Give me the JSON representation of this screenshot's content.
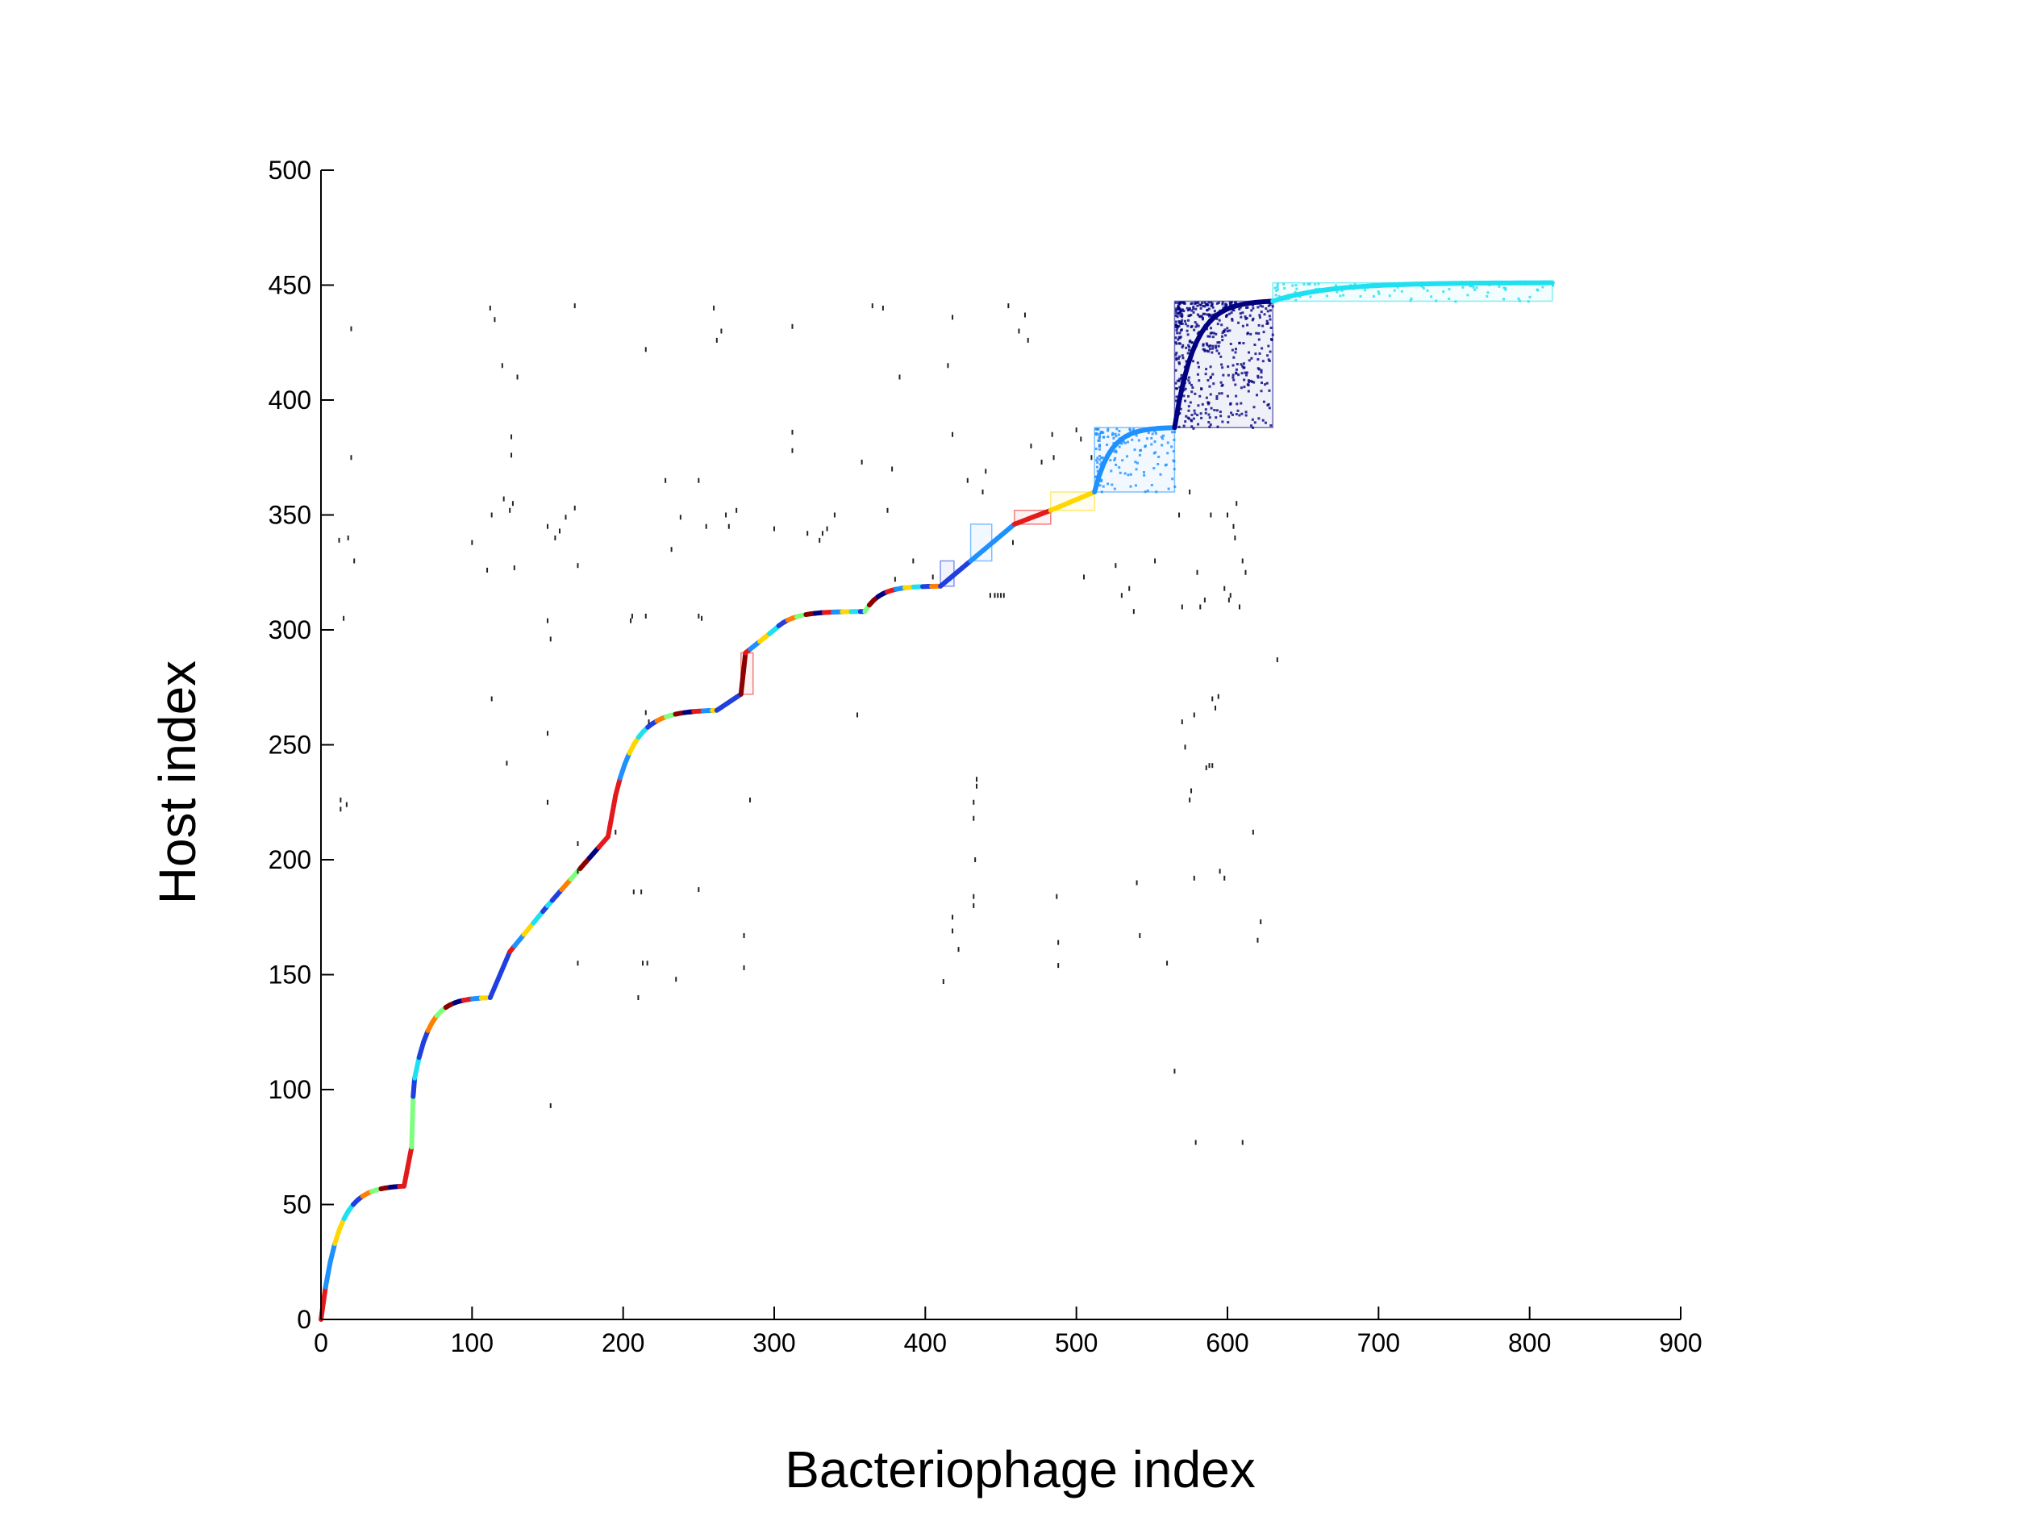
{
  "chart_data": {
    "type": "scatter",
    "title": "",
    "xlabel": "Bacteriophage index",
    "ylabel": "Host index",
    "xlim": [
      0,
      900
    ],
    "ylim": [
      0,
      500
    ],
    "xticks": [
      0,
      100,
      200,
      300,
      400,
      500,
      600,
      700,
      800,
      900
    ],
    "yticks": [
      0,
      50,
      100,
      150,
      200,
      250,
      300,
      350,
      400,
      450,
      500
    ],
    "grid": false,
    "legend": "none",
    "colors": {
      "dark_red": "#8b0000",
      "red": "#e31a1c",
      "orange": "#ff7f00",
      "yellow": "#ffd700",
      "green": "#7fff7f",
      "cyan": "#1ee0f0",
      "light_blue": "#1e90ff",
      "blue": "#1f3fe0",
      "navy": "#000080",
      "scatter_dots": "#222222"
    },
    "diagonal_segments": [
      {
        "x": [
          0,
          55
        ],
        "y": [
          0,
          58
        ],
        "color": "multi"
      },
      {
        "x": [
          55,
          60
        ],
        "y": [
          58,
          75
        ],
        "color": "#e31a1c"
      },
      {
        "x": [
          60,
          61
        ],
        "y": [
          75,
          97
        ],
        "color": "#7fff7f"
      },
      {
        "x": [
          61,
          62
        ],
        "y": [
          97,
          105
        ],
        "color": "#1f3fe0"
      },
      {
        "x": [
          62,
          112
        ],
        "y": [
          105,
          140
        ],
        "color": "multi"
      },
      {
        "x": [
          112,
          125
        ],
        "y": [
          140,
          160
        ],
        "color": "#1f3fe0"
      },
      {
        "x": [
          125,
          150
        ],
        "y": [
          160,
          180
        ],
        "color": "multi"
      },
      {
        "x": [
          150,
          190
        ],
        "y": [
          180,
          210
        ],
        "color": "multi"
      },
      {
        "x": [
          190,
          195
        ],
        "y": [
          210,
          228
        ],
        "color": "#e31a1c"
      },
      {
        "x": [
          195,
          262
        ],
        "y": [
          228,
          265
        ],
        "color": "multi"
      },
      {
        "x": [
          262,
          278
        ],
        "y": [
          265,
          272
        ],
        "color": "#1f3fe0"
      },
      {
        "x": [
          278,
          281
        ],
        "y": [
          272,
          290
        ],
        "color": "#8b0000"
      },
      {
        "x": [
          281,
          300
        ],
        "y": [
          290,
          300
        ],
        "color": "multi"
      },
      {
        "x": [
          300,
          360
        ],
        "y": [
          300,
          308
        ],
        "color": "multi"
      },
      {
        "x": [
          360,
          410
        ],
        "y": [
          308,
          319
        ],
        "color": "multi"
      },
      {
        "x": [
          410,
          430
        ],
        "y": [
          319,
          330
        ],
        "color": "#1f3fe0"
      },
      {
        "x": [
          430,
          459
        ],
        "y": [
          330,
          346
        ],
        "color": "#1e90ff"
      },
      {
        "x": [
          459,
          483
        ],
        "y": [
          346,
          352
        ],
        "color": "#e31a1c"
      },
      {
        "x": [
          483,
          512
        ],
        "y": [
          352,
          360
        ],
        "color": "#ffd700"
      },
      {
        "x": [
          512,
          565
        ],
        "y": [
          360,
          388
        ],
        "color": "#1e90ff"
      },
      {
        "x": [
          565,
          630
        ],
        "y": [
          388,
          443
        ],
        "color": "#000080"
      },
      {
        "x": [
          630,
          815
        ],
        "y": [
          443,
          451
        ],
        "color": "#1ee0f0"
      }
    ],
    "blocks": [
      {
        "x": [
          565,
          630
        ],
        "y": [
          388,
          443
        ],
        "color": "#000080"
      },
      {
        "x": [
          512,
          565
        ],
        "y": [
          360,
          388
        ],
        "color": "#1e90ff"
      },
      {
        "x": [
          630,
          815
        ],
        "y": [
          443,
          451
        ],
        "color": "#1ee0f0"
      },
      {
        "x": [
          430,
          444
        ],
        "y": [
          330,
          346
        ],
        "color": "#1e90ff"
      },
      {
        "x": [
          483,
          512
        ],
        "y": [
          352,
          360
        ],
        "color": "#ffd700"
      },
      {
        "x": [
          459,
          483
        ],
        "y": [
          346,
          352
        ],
        "color": "#e31a1c"
      },
      {
        "x": [
          278,
          286
        ],
        "y": [
          272,
          290
        ],
        "color": "#e31a1c"
      },
      {
        "x": [
          410,
          419
        ],
        "y": [
          319,
          330
        ],
        "color": "#1f3fe0"
      }
    ],
    "scattered_points": [
      [
        12,
        339
      ],
      [
        15,
        305
      ],
      [
        18,
        340
      ],
      [
        20,
        431
      ],
      [
        20,
        375
      ],
      [
        22,
        330
      ],
      [
        13,
        226
      ],
      [
        13,
        222
      ],
      [
        17,
        224
      ],
      [
        100,
        338
      ],
      [
        110,
        326
      ],
      [
        112,
        440
      ],
      [
        113,
        350
      ],
      [
        115,
        435
      ],
      [
        120,
        415
      ],
      [
        125,
        352
      ],
      [
        123,
        242
      ],
      [
        126,
        384
      ],
      [
        126,
        376
      ],
      [
        127,
        355
      ],
      [
        128,
        327
      ],
      [
        130,
        410
      ],
      [
        113,
        270
      ],
      [
        121,
        357
      ],
      [
        150,
        304
      ],
      [
        152,
        296
      ],
      [
        150,
        255
      ],
      [
        152,
        93
      ],
      [
        155,
        340
      ],
      [
        150,
        345
      ],
      [
        158,
        343
      ],
      [
        162,
        349
      ],
      [
        168,
        441
      ],
      [
        168,
        353
      ],
      [
        170,
        328
      ],
      [
        170,
        207
      ],
      [
        170,
        195
      ],
      [
        170,
        155
      ],
      [
        150,
        225
      ],
      [
        195,
        212
      ],
      [
        206,
        306
      ],
      [
        205,
        304
      ],
      [
        207,
        186
      ],
      [
        210,
        140
      ],
      [
        212,
        186
      ],
      [
        215,
        422
      ],
      [
        215,
        306
      ],
      [
        215,
        264
      ],
      [
        217,
        260
      ],
      [
        216,
        155
      ],
      [
        213,
        155
      ],
      [
        228,
        365
      ],
      [
        235,
        148
      ],
      [
        232,
        335
      ],
      [
        238,
        349
      ],
      [
        250,
        365
      ],
      [
        250,
        306
      ],
      [
        252,
        305
      ],
      [
        250,
        187
      ],
      [
        255,
        345
      ],
      [
        260,
        440
      ],
      [
        262,
        426
      ],
      [
        265,
        430
      ],
      [
        268,
        350
      ],
      [
        270,
        345
      ],
      [
        275,
        352
      ],
      [
        280,
        167
      ],
      [
        280,
        153
      ],
      [
        284,
        226
      ],
      [
        300,
        344
      ],
      [
        312,
        432
      ],
      [
        312,
        386
      ],
      [
        312,
        378
      ],
      [
        322,
        342
      ],
      [
        330,
        339
      ],
      [
        332,
        342
      ],
      [
        335,
        344
      ],
      [
        340,
        350
      ],
      [
        355,
        263
      ],
      [
        358,
        373
      ],
      [
        365,
        441
      ],
      [
        372,
        440
      ],
      [
        375,
        352
      ],
      [
        378,
        370
      ],
      [
        380,
        322
      ],
      [
        383,
        410
      ],
      [
        392,
        330
      ],
      [
        405,
        323
      ],
      [
        412,
        147
      ],
      [
        415,
        415
      ],
      [
        418,
        436
      ],
      [
        418,
        175
      ],
      [
        418,
        169
      ],
      [
        418,
        385
      ],
      [
        422,
        161
      ],
      [
        428,
        365
      ],
      [
        432,
        225
      ],
      [
        432,
        218
      ],
      [
        432,
        184
      ],
      [
        432,
        180
      ],
      [
        434,
        235
      ],
      [
        434,
        232
      ],
      [
        433,
        200
      ],
      [
        438,
        360
      ],
      [
        440,
        369
      ],
      [
        443,
        315
      ],
      [
        446,
        315
      ],
      [
        448,
        315
      ],
      [
        450,
        315
      ],
      [
        452,
        315
      ],
      [
        455,
        441
      ],
      [
        458,
        338
      ],
      [
        462,
        430
      ],
      [
        466,
        437
      ],
      [
        468,
        426
      ],
      [
        470,
        380
      ],
      [
        477,
        373
      ],
      [
        484,
        385
      ],
      [
        485,
        375
      ],
      [
        487,
        184
      ],
      [
        488,
        164
      ],
      [
        488,
        154
      ],
      [
        500,
        387
      ],
      [
        503,
        383
      ],
      [
        505,
        323
      ],
      [
        510,
        375
      ],
      [
        526,
        328
      ],
      [
        530,
        315
      ],
      [
        535,
        318
      ],
      [
        538,
        308
      ],
      [
        540,
        190
      ],
      [
        542,
        167
      ],
      [
        552,
        330
      ],
      [
        560,
        155
      ],
      [
        565,
        108
      ],
      [
        568,
        350
      ],
      [
        570,
        260
      ],
      [
        572,
        249
      ],
      [
        576,
        230
      ],
      [
        578,
        263
      ],
      [
        570,
        310
      ],
      [
        575,
        360
      ],
      [
        580,
        325
      ],
      [
        582,
        310
      ],
      [
        585,
        313
      ],
      [
        586,
        240
      ],
      [
        588,
        241
      ],
      [
        590,
        270
      ],
      [
        592,
        266
      ],
      [
        594,
        271
      ],
      [
        590,
        241
      ],
      [
        595,
        195
      ],
      [
        598,
        192
      ],
      [
        600,
        350
      ],
      [
        602,
        315
      ],
      [
        604,
        345
      ],
      [
        605,
        340
      ],
      [
        608,
        310
      ],
      [
        610,
        330
      ],
      [
        612,
        325
      ],
      [
        606,
        355
      ],
      [
        589,
        350
      ],
      [
        598,
        318
      ],
      [
        601,
        313
      ],
      [
        633,
        287
      ],
      [
        617,
        212
      ],
      [
        620,
        165
      ],
      [
        622,
        173
      ],
      [
        575,
        226
      ],
      [
        578,
        192
      ],
      [
        579,
        77
      ],
      [
        610,
        77
      ]
    ]
  }
}
